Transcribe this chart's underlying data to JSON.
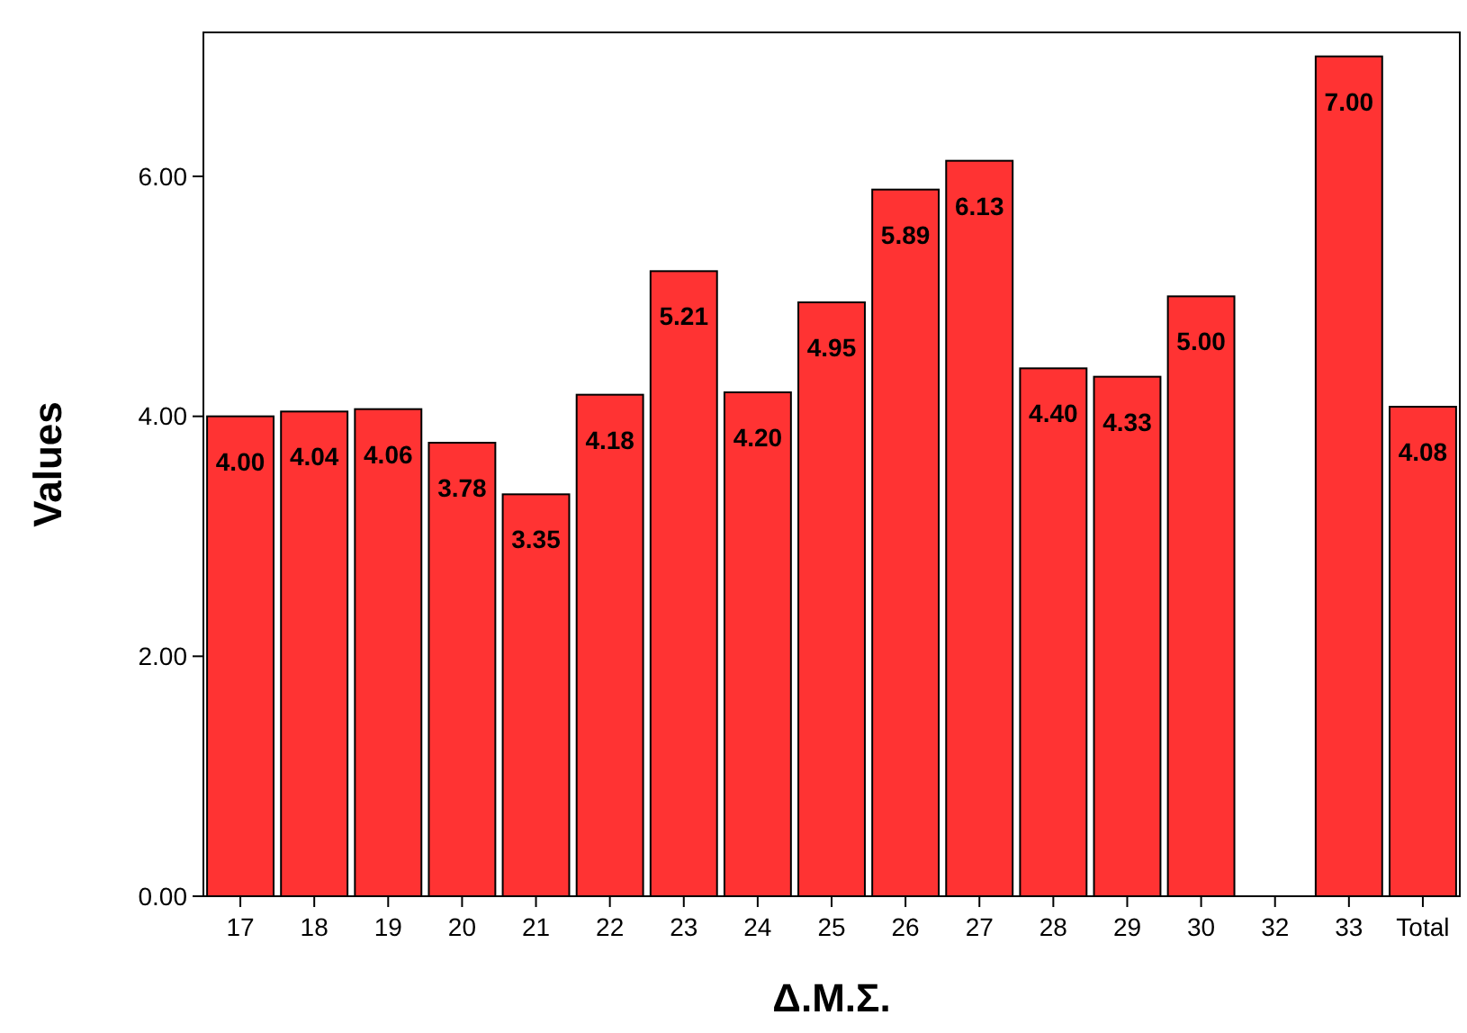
{
  "chart_data": {
    "type": "bar",
    "xlabel": "Δ.Μ.Σ.",
    "ylabel": "Values",
    "categories": [
      "17",
      "18",
      "19",
      "20",
      "21",
      "22",
      "23",
      "24",
      "25",
      "26",
      "27",
      "28",
      "29",
      "30",
      "32",
      "33",
      "Total"
    ],
    "values": [
      4.0,
      4.04,
      4.06,
      3.78,
      3.35,
      4.18,
      5.21,
      4.2,
      4.95,
      5.89,
      6.13,
      4.4,
      4.33,
      5.0,
      null,
      7.0,
      4.08
    ],
    "value_labels": [
      "4.00",
      "4.04",
      "4.06",
      "3.78",
      "3.35",
      "4.18",
      "5.21",
      "4.20",
      "4.95",
      "5.89",
      "6.13",
      "4.40",
      "4.33",
      "5.00",
      null,
      "7.00",
      "4.08"
    ],
    "color": "#ff3333",
    "ylim": [
      0,
      7.2
    ],
    "yticks": [
      {
        "value": 0,
        "label": "0.00"
      },
      {
        "value": 2,
        "label": "2.00"
      },
      {
        "value": 4,
        "label": "4.00"
      },
      {
        "value": 6,
        "label": "6.00"
      }
    ],
    "grid": false
  }
}
